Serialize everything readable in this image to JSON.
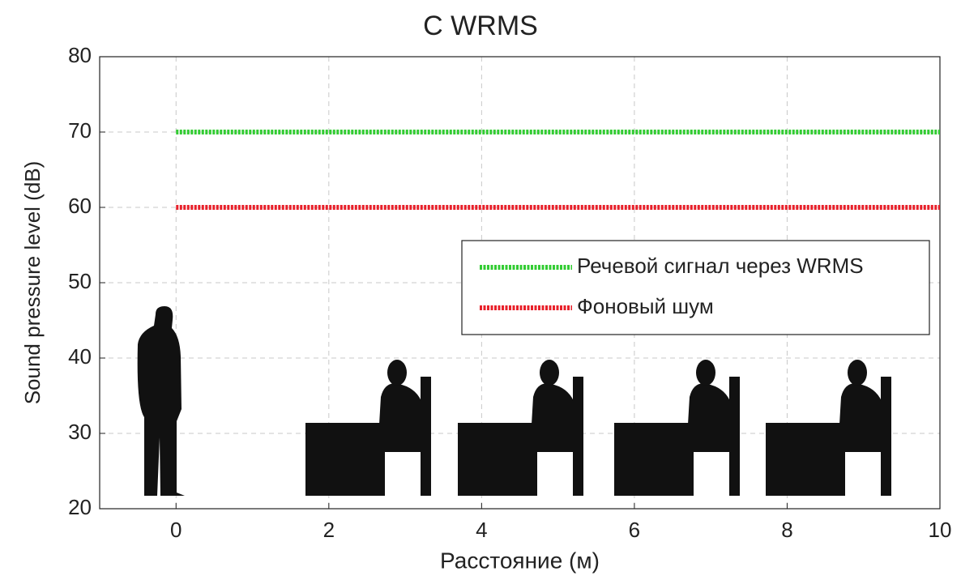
{
  "chart_data": {
    "type": "line",
    "title": "С WRMS",
    "x_label": "Расстояние (м)",
    "y_label": "Sound pressure level (dB)",
    "x": [
      0,
      10
    ],
    "series": [
      {
        "name": "Речевой сигнал через WRMS",
        "color": "#33cc33",
        "values": [
          70,
          70
        ]
      },
      {
        "name": "Фоновый шум",
        "color": "#e8202a",
        "values": [
          60,
          60
        ]
      }
    ],
    "xlim": [
      -1,
      10
    ],
    "xticks": [
      0,
      2,
      4,
      6,
      8,
      10
    ],
    "ylim": [
      20,
      80
    ],
    "yticks": [
      20,
      30,
      40,
      50,
      60,
      70,
      80
    ],
    "grid": true
  }
}
